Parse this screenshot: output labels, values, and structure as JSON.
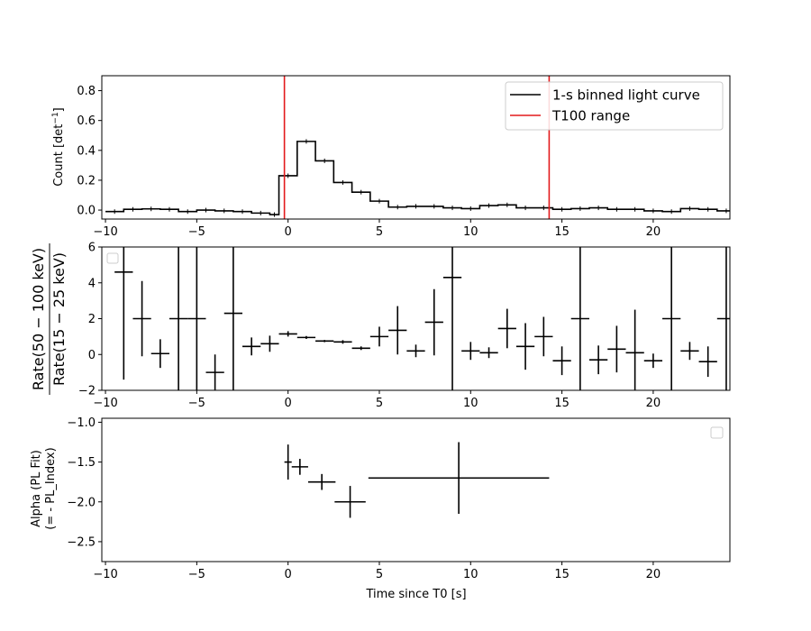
{
  "chart_data": [
    {
      "type": "line",
      "panel": "top",
      "ylabel": "Count [det$^{-1}$]",
      "ylabel_text": "Count [det",
      "ylabel_sup": "−1",
      "ylabel_end": "]",
      "xlim": [
        -10.2,
        24.2
      ],
      "ylim": [
        -0.06,
        0.9
      ],
      "xticks": [
        -10,
        -5,
        0,
        5,
        10,
        15,
        20
      ],
      "xtick_labels": [
        "−10",
        "−5",
        "0",
        "5",
        "10",
        "15",
        "20"
      ],
      "yticks": [
        0.0,
        0.2,
        0.4,
        0.6,
        0.8
      ],
      "ytick_labels": [
        "0.0",
        "0.2",
        "0.4",
        "0.6",
        "0.8"
      ],
      "legend_position": "top-right",
      "series": [
        {
          "name": "1-s binned light curve",
          "color": "#000000",
          "style": "step",
          "bin_edges": [
            -10,
            -9,
            -8,
            -7,
            -6,
            -5,
            -4,
            -3,
            -2,
            -1,
            -0.5,
            0.5,
            1.5,
            2.5,
            3.5,
            4.5,
            5.5,
            6.5,
            7.5,
            8.5,
            9.5,
            10.5,
            11.5,
            12.5,
            13.5,
            14.5,
            15.5,
            16.5,
            17.5,
            18.5,
            19.5,
            20.5,
            21.5,
            22.5,
            23.5,
            24.5
          ],
          "values": [
            -0.01,
            0.005,
            0.008,
            0.005,
            -0.01,
            0.0,
            -0.005,
            -0.01,
            -0.02,
            -0.03,
            0.23,
            0.46,
            0.33,
            0.185,
            0.12,
            0.06,
            0.02,
            0.025,
            0.025,
            0.015,
            0.01,
            0.03,
            0.035,
            0.015,
            0.015,
            0.005,
            0.01,
            0.015,
            0.005,
            0.005,
            -0.005,
            -0.01,
            0.01,
            0.005,
            -0.005
          ]
        },
        {
          "name": "T100 range",
          "color": "#e31a1c",
          "style": "vline",
          "x": [
            -0.2,
            14.3
          ]
        }
      ]
    },
    {
      "type": "scatter",
      "panel": "middle",
      "ylabel_top": "Rate(50 − 100 keV)",
      "ylabel_bottom": "Rate(15 − 25 keV)",
      "xlim": [
        -10.2,
        24.2
      ],
      "ylim": [
        -2,
        6
      ],
      "xticks": [
        -10,
        -5,
        0,
        5,
        10,
        15,
        20
      ],
      "xtick_labels": [
        "−10",
        "−5",
        "0",
        "5",
        "10",
        "15",
        "20"
      ],
      "yticks": [
        -2,
        0,
        2,
        4,
        6
      ],
      "ytick_labels": [
        "−2",
        "0",
        "2",
        "4",
        "6"
      ],
      "points": [
        {
          "x": -9,
          "y": 4.6,
          "yerr": 6
        },
        {
          "x": -8,
          "y": 2.0,
          "yerr": 2.1
        },
        {
          "x": -7,
          "y": 0.05,
          "yerr": 0.8
        },
        {
          "x": -6,
          "y": 2.0,
          "yerr": 8
        },
        {
          "x": -5,
          "y": 2.0,
          "yerr": 8
        },
        {
          "x": -4,
          "y": -1.0,
          "yerr": 1.0
        },
        {
          "x": -3,
          "y": 2.3,
          "yerr": 5
        },
        {
          "x": -2,
          "y": 0.45,
          "yerr": 0.5
        },
        {
          "x": -1,
          "y": 0.6,
          "yerr": 0.45
        },
        {
          "x": 0,
          "y": 1.15,
          "yerr": 0.15
        },
        {
          "x": 1,
          "y": 0.95,
          "yerr": 0.08
        },
        {
          "x": 2,
          "y": 0.75,
          "yerr": 0.06
        },
        {
          "x": 3,
          "y": 0.7,
          "yerr": 0.1
        },
        {
          "x": 4,
          "y": 0.35,
          "yerr": 0.1
        },
        {
          "x": 5,
          "y": 1.0,
          "yerr": 0.55
        },
        {
          "x": 6,
          "y": 1.35,
          "yerr": 1.35
        },
        {
          "x": 7,
          "y": 0.2,
          "yerr": 0.35
        },
        {
          "x": 8,
          "y": 1.8,
          "yerr": 1.85
        },
        {
          "x": 9,
          "y": 4.3,
          "yerr": 6.5
        },
        {
          "x": 10,
          "y": 0.2,
          "yerr": 0.5
        },
        {
          "x": 11,
          "y": 0.1,
          "yerr": 0.3
        },
        {
          "x": 12,
          "y": 1.45,
          "yerr": 1.1
        },
        {
          "x": 13,
          "y": 0.45,
          "yerr": 1.3
        },
        {
          "x": 14,
          "y": 1.0,
          "yerr": 1.1
        },
        {
          "x": 15,
          "y": -0.35,
          "yerr": 0.8
        },
        {
          "x": 16,
          "y": 2.0,
          "yerr": 8
        },
        {
          "x": 17,
          "y": -0.3,
          "yerr": 0.8
        },
        {
          "x": 18,
          "y": 0.3,
          "yerr": 1.3
        },
        {
          "x": 19,
          "y": 0.1,
          "yerr": 2.4
        },
        {
          "x": 20,
          "y": -0.35,
          "yerr": 0.4
        },
        {
          "x": 21,
          "y": 2.0,
          "yerr": 8
        },
        {
          "x": 22,
          "y": 0.2,
          "yerr": 0.5
        },
        {
          "x": 23,
          "y": -0.4,
          "yerr": 0.85
        },
        {
          "x": 24,
          "y": 2.0,
          "yerr": 8
        }
      ]
    },
    {
      "type": "scatter",
      "panel": "bottom",
      "xlabel": "Time since T0 [s]",
      "ylabel_line1": "Alpha (PL Fit)",
      "ylabel_line2": "(= - PL_Index)",
      "xlim": [
        -10.2,
        24.2
      ],
      "ylim": [
        -2.75,
        -0.95
      ],
      "xticks": [
        -10,
        -5,
        0,
        5,
        10,
        15,
        20
      ],
      "xtick_labels": [
        "−10",
        "−5",
        "0",
        "5",
        "10",
        "15",
        "20"
      ],
      "yticks": [
        -1.0,
        -1.5,
        -2.0,
        -2.5
      ],
      "ytick_labels": [
        "−1.0",
        "−1.5",
        "−2.0",
        "−2.5"
      ],
      "points": [
        {
          "x": 0.0,
          "xerr": 0.2,
          "y": -1.5,
          "yerr": 0.22
        },
        {
          "x": 0.65,
          "xerr": 0.45,
          "y": -1.56,
          "yerr": 0.1
        },
        {
          "x": 1.85,
          "xerr": 0.75,
          "y": -1.75,
          "yerr": 0.1
        },
        {
          "x": 3.4,
          "xerr": 0.85,
          "y": -2.0,
          "yerr": 0.2
        },
        {
          "x": 9.35,
          "xerr": 4.95,
          "y": -1.7,
          "yerr": 0.45
        }
      ]
    }
  ]
}
